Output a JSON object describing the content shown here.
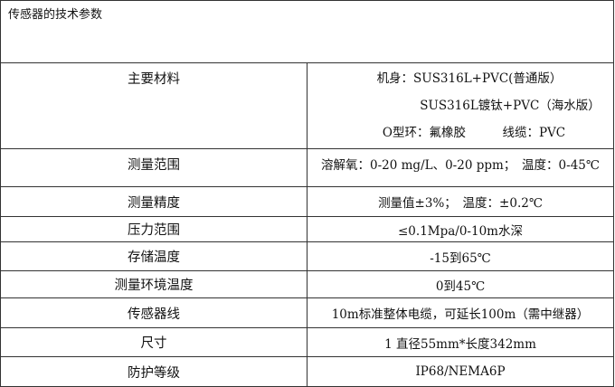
{
  "title": "传感器的技术参数",
  "rows": [
    {
      "label": "主要材料",
      "lines": [
        "机身：SUS316L+PVC(普通版）",
        "SUS316L镀钛+PVC（海水版）",
        "O型环：氟橡胶　　　线缆：PVC"
      ]
    },
    {
      "label": "测量范围",
      "value": "溶解氧：0-20 mg/L、0-20 ppm；　温度：0-45℃"
    },
    {
      "label": "测量精度",
      "value": "测量值±3%；　温度：±0.2℃"
    },
    {
      "label": "压力范围",
      "value": "≤0.1Mpa/0-10m水深"
    },
    {
      "label": "存储温度",
      "value": "-15到65℃"
    },
    {
      "label": "测量环境温度",
      "value": "0到45℃"
    },
    {
      "label": "传感器线",
      "value": "10m标准整体电缆，可延长100m（需中继器）"
    },
    {
      "label": "尺寸",
      "value": "1 直径55mm*长度342mm"
    },
    {
      "label": "防护等级",
      "value": "IP68/NEMA6P"
    }
  ]
}
